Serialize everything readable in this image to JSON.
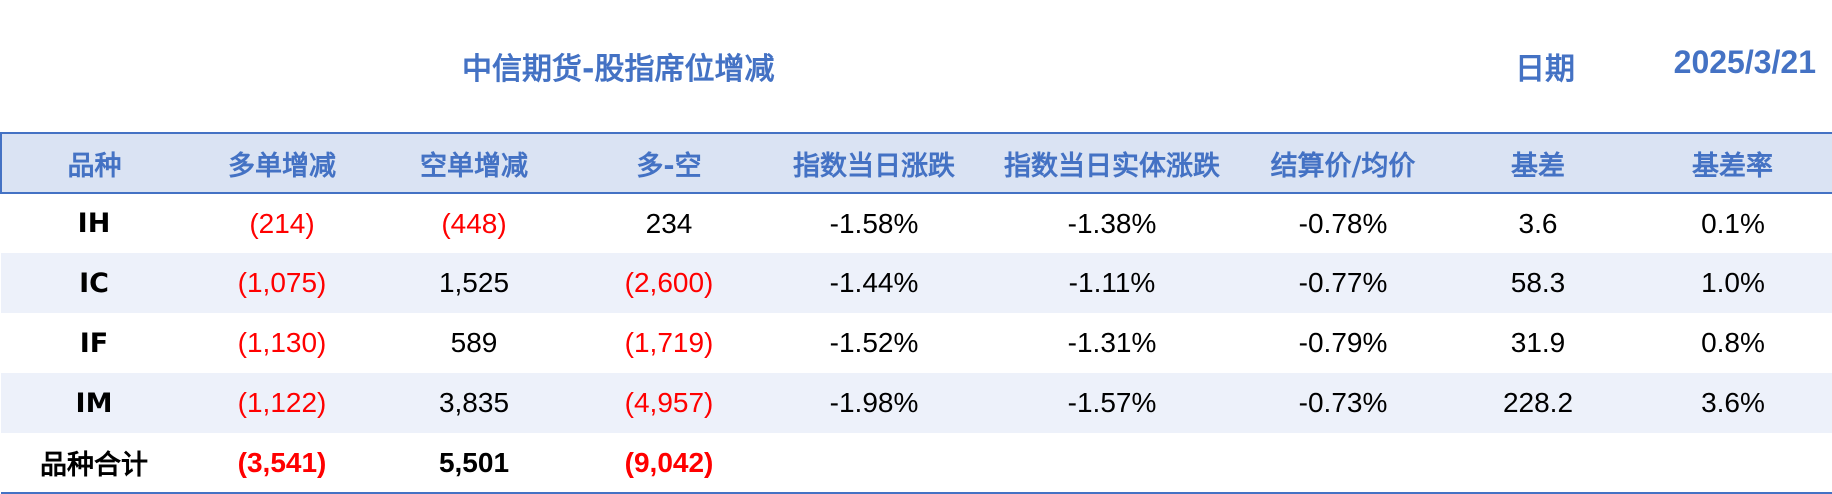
{
  "header": {
    "title": "中信期货-股指席位增减",
    "date_label": "日期",
    "date_value": "2025/3/21"
  },
  "table": {
    "columns": [
      "品种",
      "多单增减",
      "空单增减",
      "多-空",
      "指数当日涨跌",
      "指数当日实体涨跌",
      "结算价/均价",
      "基差",
      "基差率"
    ],
    "rows": [
      {
        "code": "IH",
        "long": "(214)",
        "short": "(448)",
        "net": "234",
        "chg": "-1.58%",
        "body_chg": "-1.38%",
        "settle": "-0.78%",
        "basis": "3.6",
        "basis_rate": "0.1%"
      },
      {
        "code": "IC",
        "long": "(1,075)",
        "short": "1,525",
        "net": "(2,600)",
        "chg": "-1.44%",
        "body_chg": "-1.11%",
        "settle": "-0.77%",
        "basis": "58.3",
        "basis_rate": "1.0%"
      },
      {
        "code": "IF",
        "long": "(1,130)",
        "short": "589",
        "net": "(1,719)",
        "chg": "-1.52%",
        "body_chg": "-1.31%",
        "settle": "-0.79%",
        "basis": "31.9",
        "basis_rate": "0.8%"
      },
      {
        "code": "IM",
        "long": "(1,122)",
        "short": "3,835",
        "net": "(4,957)",
        "chg": "-1.98%",
        "body_chg": "-1.57%",
        "settle": "-0.73%",
        "basis": "228.2",
        "basis_rate": "3.6%"
      }
    ],
    "total": {
      "label": "品种合计",
      "long": "(3,541)",
      "short": "5,501",
      "net": "(9,042)"
    }
  },
  "colors": {
    "accent": "#4472c4",
    "header_fill": "#dae3f3",
    "stripe_fill": "#edf1fa",
    "negative": "#ff0000"
  }
}
